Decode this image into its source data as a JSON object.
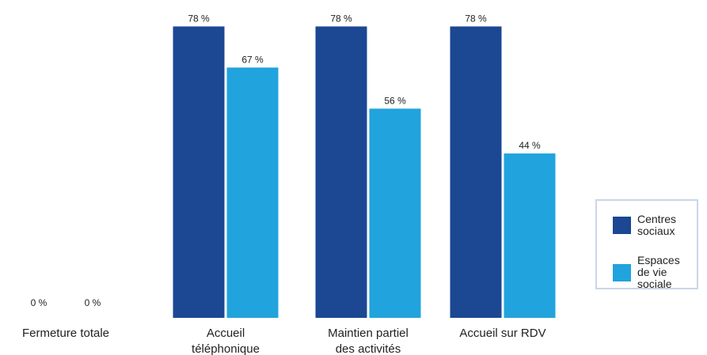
{
  "chart_data": {
    "type": "bar",
    "categories": [
      [
        "Fermeture totale"
      ],
      [
        "Accueil",
        "téléphonique"
      ],
      [
        "Maintien partiel",
        "des activités"
      ],
      [
        "Accueil sur RDV"
      ]
    ],
    "series": [
      {
        "name": "Centres sociaux",
        "color": "#1b4793",
        "values": [
          0,
          78,
          78,
          78
        ],
        "value_labels": [
          "0 %",
          "78 %",
          "78 %",
          "78 %"
        ]
      },
      {
        "name": "Espaces de vie sociale",
        "color": "#21a3dd",
        "values": [
          0,
          67,
          56,
          44
        ],
        "value_labels": [
          "0 %",
          "67 %",
          "56 %",
          "44 %"
        ]
      }
    ],
    "ylim": [
      0,
      80
    ]
  }
}
